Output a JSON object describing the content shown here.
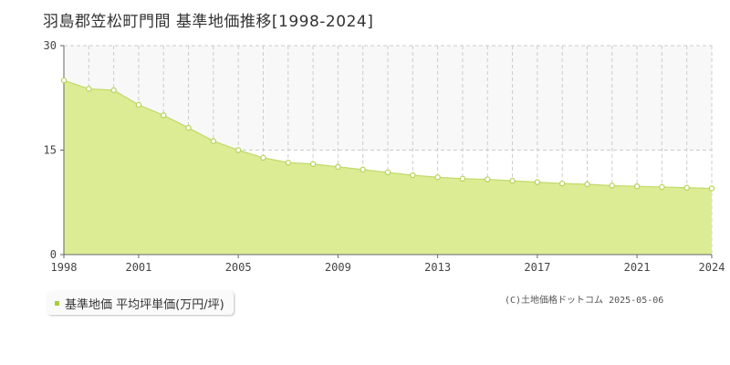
{
  "title": "羽島郡笠松町門間 基準地価推移[1998-2024]",
  "legend": {
    "label": "基準地価 平均坪単価(万円/坪)"
  },
  "copyright": "(C)土地価格ドットコム 2025-05-06",
  "colors": {
    "area_fill": "#dcec94",
    "line": "#c0da6a",
    "point_fill": "#ffffff",
    "point_stroke": "#b5d35a",
    "legend_swatch": "#a8cf3b",
    "grid": "#cccccc",
    "axis": "#666666"
  },
  "chart_data": {
    "type": "area",
    "title": "羽島郡笠松町門間 基準地価推移[1998-2024]",
    "xlabel": "",
    "ylabel": "",
    "x": [
      1998,
      1999,
      2000,
      2001,
      2002,
      2003,
      2004,
      2005,
      2006,
      2007,
      2008,
      2009,
      2010,
      2011,
      2012,
      2013,
      2014,
      2015,
      2016,
      2017,
      2018,
      2019,
      2020,
      2021,
      2022,
      2023,
      2024
    ],
    "series": [
      {
        "name": "基準地価 平均坪単価(万円/坪)",
        "values": [
          25.0,
          23.8,
          23.6,
          21.5,
          20.0,
          18.2,
          16.3,
          15.0,
          13.9,
          13.2,
          13.0,
          12.6,
          12.2,
          11.8,
          11.4,
          11.1,
          10.9,
          10.8,
          10.6,
          10.4,
          10.2,
          10.1,
          9.9,
          9.8,
          9.7,
          9.6,
          9.5
        ]
      }
    ],
    "xlim": [
      1998,
      2024
    ],
    "ylim": [
      0,
      30
    ],
    "x_ticks": [
      "1998",
      "2001",
      "2005",
      "2009",
      "2013",
      "2017",
      "2021",
      "2024"
    ],
    "y_ticks": [
      "0",
      "15",
      "30"
    ],
    "grid": true,
    "legend_position": "bottom-left"
  }
}
